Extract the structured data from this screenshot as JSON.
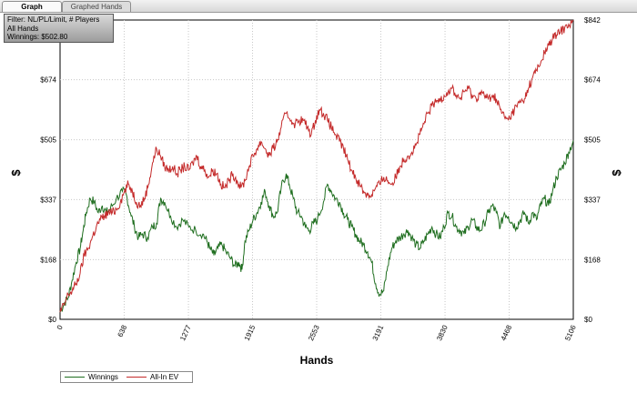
{
  "tabs": [
    {
      "label": "Graph",
      "active": true
    },
    {
      "label": "Graphed Hands",
      "active": false
    }
  ],
  "filter_box": {
    "lines": [
      "Filter: NL/PL/Limit, # Players",
      "All Hands",
      "Winnings: $502.80"
    ]
  },
  "colors": {
    "winnings": "#1f6e1f",
    "all_in_ev": "#c42a2a",
    "grid": "#c8c8c8",
    "axis": "#000000"
  },
  "chart_data": {
    "type": "line",
    "xlabel": "Hands",
    "ylabel_left": "$",
    "ylabel_right": "$",
    "xlim": [
      0,
      5106
    ],
    "ylim": [
      0,
      842
    ],
    "x_ticks": [
      0,
      638,
      1277,
      1915,
      2553,
      3191,
      3830,
      4468,
      5106
    ],
    "y_ticks": [
      0,
      168,
      337,
      505,
      674,
      842
    ],
    "y_tick_labels": [
      "$0",
      "$168",
      "$337",
      "$505",
      "$674",
      "$842"
    ],
    "grid": true,
    "legend_position": "bottom-left",
    "series": [
      {
        "name": "Winnings",
        "points": [
          [
            0,
            20
          ],
          [
            40,
            45
          ],
          [
            80,
            60
          ],
          [
            120,
            110
          ],
          [
            160,
            160
          ],
          [
            200,
            200
          ],
          [
            230,
            250
          ],
          [
            260,
            300
          ],
          [
            300,
            340
          ],
          [
            340,
            330
          ],
          [
            380,
            300
          ],
          [
            420,
            320
          ],
          [
            460,
            300
          ],
          [
            500,
            310
          ],
          [
            560,
            340
          ],
          [
            620,
            360
          ],
          [
            660,
            350
          ],
          [
            700,
            300
          ],
          [
            740,
            260
          ],
          [
            780,
            230
          ],
          [
            820,
            240
          ],
          [
            870,
            230
          ],
          [
            920,
            260
          ],
          [
            960,
            270
          ],
          [
            1000,
            340
          ],
          [
            1040,
            330
          ],
          [
            1100,
            290
          ],
          [
            1160,
            260
          ],
          [
            1220,
            280
          ],
          [
            1280,
            260
          ],
          [
            1350,
            250
          ],
          [
            1420,
            240
          ],
          [
            1460,
            220
          ],
          [
            1490,
            200
          ],
          [
            1530,
            180
          ],
          [
            1570,
            200
          ],
          [
            1610,
            210
          ],
          [
            1650,
            190
          ],
          [
            1700,
            170
          ],
          [
            1740,
            150
          ],
          [
            1780,
            160
          ],
          [
            1810,
            140
          ],
          [
            1840,
            220
          ],
          [
            1880,
            250
          ],
          [
            1920,
            280
          ],
          [
            1960,
            300
          ],
          [
            2000,
            330
          ],
          [
            2040,
            360
          ],
          [
            2080,
            320
          ],
          [
            2120,
            290
          ],
          [
            2160,
            300
          ],
          [
            2200,
            370
          ],
          [
            2250,
            410
          ],
          [
            2280,
            380
          ],
          [
            2320,
            340
          ],
          [
            2360,
            300
          ],
          [
            2400,
            290
          ],
          [
            2440,
            260
          ],
          [
            2480,
            250
          ],
          [
            2520,
            270
          ],
          [
            2560,
            280
          ],
          [
            2620,
            330
          ],
          [
            2660,
            380
          ],
          [
            2700,
            360
          ],
          [
            2740,
            340
          ],
          [
            2780,
            330
          ],
          [
            2820,
            300
          ],
          [
            2860,
            280
          ],
          [
            2900,
            260
          ],
          [
            2940,
            240
          ],
          [
            2980,
            220
          ],
          [
            3020,
            210
          ],
          [
            3060,
            190
          ],
          [
            3100,
            160
          ],
          [
            3140,
            100
          ],
          [
            3180,
            70
          ],
          [
            3220,
            80
          ],
          [
            3260,
            150
          ],
          [
            3300,
            200
          ],
          [
            3340,
            220
          ],
          [
            3380,
            230
          ],
          [
            3420,
            240
          ],
          [
            3460,
            250
          ],
          [
            3500,
            230
          ],
          [
            3540,
            210
          ],
          [
            3580,
            200
          ],
          [
            3620,
            220
          ],
          [
            3660,
            240
          ],
          [
            3700,
            260
          ],
          [
            3740,
            240
          ],
          [
            3780,
            230
          ],
          [
            3820,
            260
          ],
          [
            3860,
            300
          ],
          [
            3900,
            290
          ],
          [
            3940,
            260
          ],
          [
            3980,
            250
          ],
          [
            4020,
            240
          ],
          [
            4060,
            260
          ],
          [
            4100,
            280
          ],
          [
            4140,
            260
          ],
          [
            4180,
            250
          ],
          [
            4220,
            270
          ],
          [
            4260,
            300
          ],
          [
            4300,
            320
          ],
          [
            4340,
            300
          ],
          [
            4380,
            260
          ],
          [
            4420,
            300
          ],
          [
            4460,
            290
          ],
          [
            4500,
            270
          ],
          [
            4540,
            260
          ],
          [
            4580,
            280
          ],
          [
            4620,
            300
          ],
          [
            4660,
            270
          ],
          [
            4700,
            300
          ],
          [
            4740,
            280
          ],
          [
            4780,
            320
          ],
          [
            4820,
            340
          ],
          [
            4860,
            320
          ],
          [
            4900,
            360
          ],
          [
            4940,
            400
          ],
          [
            4980,
            420
          ],
          [
            5020,
            440
          ],
          [
            5060,
            470
          ],
          [
            5106,
            503
          ]
        ]
      },
      {
        "name": "All-In EV",
        "points": [
          [
            0,
            20
          ],
          [
            40,
            40
          ],
          [
            80,
            70
          ],
          [
            120,
            80
          ],
          [
            160,
            100
          ],
          [
            200,
            130
          ],
          [
            240,
            180
          ],
          [
            280,
            200
          ],
          [
            320,
            230
          ],
          [
            360,
            260
          ],
          [
            400,
            280
          ],
          [
            440,
            290
          ],
          [
            480,
            300
          ],
          [
            520,
            300
          ],
          [
            560,
            310
          ],
          [
            600,
            330
          ],
          [
            640,
            360
          ],
          [
            680,
            380
          ],
          [
            720,
            360
          ],
          [
            760,
            330
          ],
          [
            800,
            320
          ],
          [
            840,
            340
          ],
          [
            880,
            380
          ],
          [
            920,
            440
          ],
          [
            960,
            480
          ],
          [
            1000,
            460
          ],
          [
            1040,
            430
          ],
          [
            1080,
            420
          ],
          [
            1120,
            430
          ],
          [
            1160,
            410
          ],
          [
            1200,
            420
          ],
          [
            1240,
            430
          ],
          [
            1280,
            420
          ],
          [
            1320,
            440
          ],
          [
            1360,
            460
          ],
          [
            1400,
            430
          ],
          [
            1440,
            420
          ],
          [
            1480,
            400
          ],
          [
            1520,
            420
          ],
          [
            1560,
            410
          ],
          [
            1600,
            380
          ],
          [
            1640,
            370
          ],
          [
            1680,
            390
          ],
          [
            1720,
            410
          ],
          [
            1760,
            390
          ],
          [
            1800,
            370
          ],
          [
            1840,
            390
          ],
          [
            1880,
            430
          ],
          [
            1920,
            460
          ],
          [
            1960,
            480
          ],
          [
            2000,
            500
          ],
          [
            2040,
            480
          ],
          [
            2080,
            460
          ],
          [
            2120,
            480
          ],
          [
            2160,
            500
          ],
          [
            2200,
            540
          ],
          [
            2250,
            580
          ],
          [
            2300,
            560
          ],
          [
            2340,
            550
          ],
          [
            2380,
            560
          ],
          [
            2420,
            560
          ],
          [
            2460,
            540
          ],
          [
            2500,
            520
          ],
          [
            2540,
            560
          ],
          [
            2580,
            590
          ],
          [
            2620,
            580
          ],
          [
            2660,
            560
          ],
          [
            2700,
            540
          ],
          [
            2740,
            520
          ],
          [
            2780,
            500
          ],
          [
            2820,
            480
          ],
          [
            2860,
            450
          ],
          [
            2900,
            420
          ],
          [
            2940,
            400
          ],
          [
            2980,
            380
          ],
          [
            3020,
            360
          ],
          [
            3060,
            350
          ],
          [
            3100,
            350
          ],
          [
            3140,
            370
          ],
          [
            3180,
            380
          ],
          [
            3220,
            400
          ],
          [
            3260,
            390
          ],
          [
            3300,
            380
          ],
          [
            3340,
            400
          ],
          [
            3380,
            430
          ],
          [
            3420,
            450
          ],
          [
            3460,
            460
          ],
          [
            3500,
            470
          ],
          [
            3540,
            490
          ],
          [
            3580,
            520
          ],
          [
            3620,
            550
          ],
          [
            3660,
            580
          ],
          [
            3700,
            600
          ],
          [
            3740,
            610
          ],
          [
            3780,
            620
          ],
          [
            3820,
            630
          ],
          [
            3860,
            640
          ],
          [
            3900,
            650
          ],
          [
            3940,
            630
          ],
          [
            3980,
            620
          ],
          [
            4020,
            640
          ],
          [
            4060,
            650
          ],
          [
            4100,
            630
          ],
          [
            4140,
            620
          ],
          [
            4180,
            640
          ],
          [
            4220,
            630
          ],
          [
            4260,
            620
          ],
          [
            4300,
            630
          ],
          [
            4340,
            620
          ],
          [
            4380,
            590
          ],
          [
            4420,
            570
          ],
          [
            4460,
            560
          ],
          [
            4500,
            580
          ],
          [
            4540,
            600
          ],
          [
            4580,
            610
          ],
          [
            4620,
            620
          ],
          [
            4660,
            650
          ],
          [
            4700,
            680
          ],
          [
            4740,
            700
          ],
          [
            4780,
            720
          ],
          [
            4820,
            750
          ],
          [
            4860,
            770
          ],
          [
            4900,
            790
          ],
          [
            4940,
            800
          ],
          [
            4980,
            810
          ],
          [
            5020,
            820
          ],
          [
            5060,
            830
          ],
          [
            5106,
            842
          ]
        ]
      }
    ]
  }
}
